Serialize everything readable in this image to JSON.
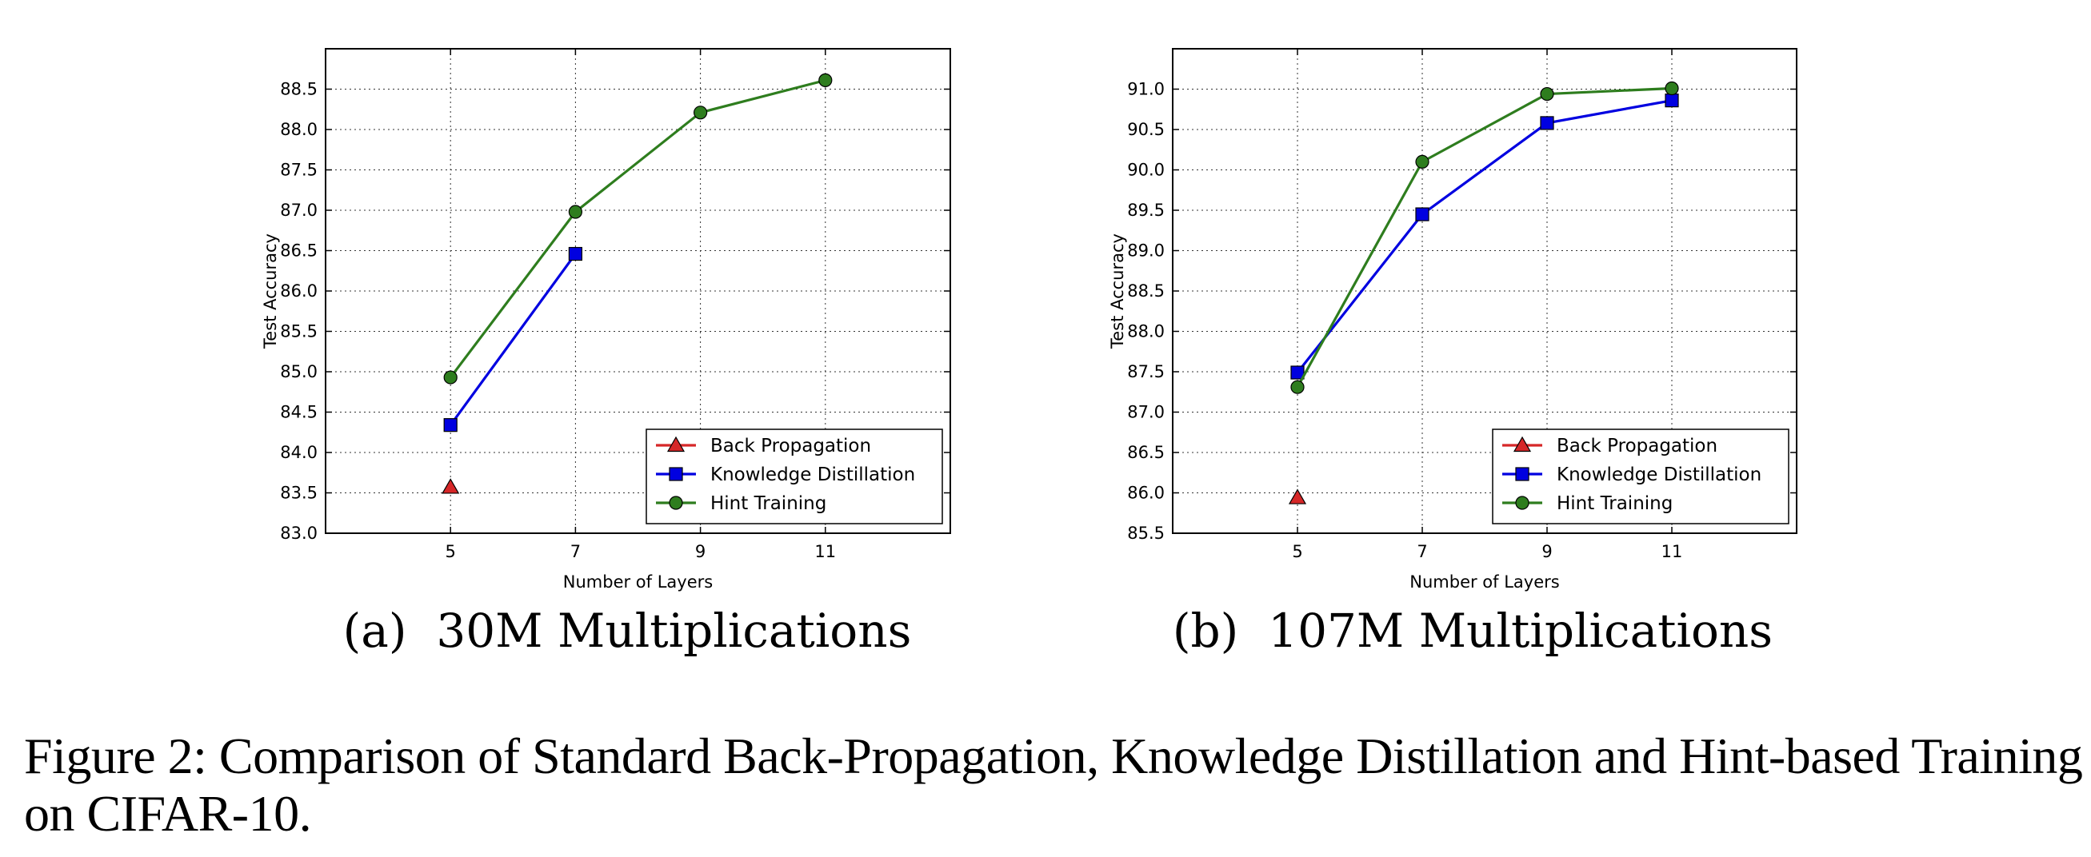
{
  "chart_data": [
    {
      "type": "line",
      "caption_label": "(a)",
      "caption_text": "30M Multiplications",
      "xlabel": "Number of Layers",
      "ylabel": "Test Accuracy",
      "xlim": [
        3,
        13
      ],
      "ylim": [
        83.0,
        89.0
      ],
      "x_ticks": [
        5,
        7,
        9,
        11
      ],
      "y_ticks": [
        83.0,
        83.5,
        84.0,
        84.5,
        85.0,
        85.5,
        86.0,
        86.5,
        87.0,
        87.5,
        88.0,
        88.5
      ],
      "grid": true,
      "legend_position": "lower right",
      "series": [
        {
          "name": "Back Propagation",
          "color": "#d62728",
          "marker": "triangle",
          "x": [
            5
          ],
          "y": [
            83.57
          ]
        },
        {
          "name": "Knowledge Distillation",
          "color": "#0000e0",
          "marker": "square",
          "x": [
            5,
            7
          ],
          "y": [
            84.34,
            86.46
          ]
        },
        {
          "name": "Hint Training",
          "color": "#2e7d1e",
          "marker": "circle",
          "x": [
            5,
            7,
            9,
            11
          ],
          "y": [
            84.93,
            86.98,
            88.21,
            88.61
          ]
        }
      ]
    },
    {
      "type": "line",
      "caption_label": "(b)",
      "caption_text": "107M Multiplications",
      "xlabel": "Number of Layers",
      "ylabel": "Test Accuracy",
      "xlim": [
        3,
        13
      ],
      "ylim": [
        85.5,
        91.5
      ],
      "x_ticks": [
        5,
        7,
        9,
        11
      ],
      "y_ticks": [
        85.5,
        86.0,
        86.5,
        87.0,
        87.5,
        88.0,
        88.5,
        89.0,
        89.5,
        90.0,
        90.5,
        91.0
      ],
      "grid": true,
      "legend_position": "lower right",
      "series": [
        {
          "name": "Back Propagation",
          "color": "#d62728",
          "marker": "triangle",
          "x": [
            5
          ],
          "y": [
            85.94
          ]
        },
        {
          "name": "Knowledge Distillation",
          "color": "#0000e0",
          "marker": "square",
          "x": [
            5,
            7,
            9,
            11
          ],
          "y": [
            87.49,
            89.45,
            90.58,
            90.86
          ]
        },
        {
          "name": "Hint Training",
          "color": "#2e7d1e",
          "marker": "circle",
          "x": [
            5,
            7,
            9,
            11
          ],
          "y": [
            87.31,
            90.1,
            90.94,
            91.01
          ]
        }
      ]
    }
  ],
  "figure_caption": "Figure 2: Comparison of Standard Back-Propagation, Knowledge Distillation and Hint-based Training on CIFAR-10."
}
